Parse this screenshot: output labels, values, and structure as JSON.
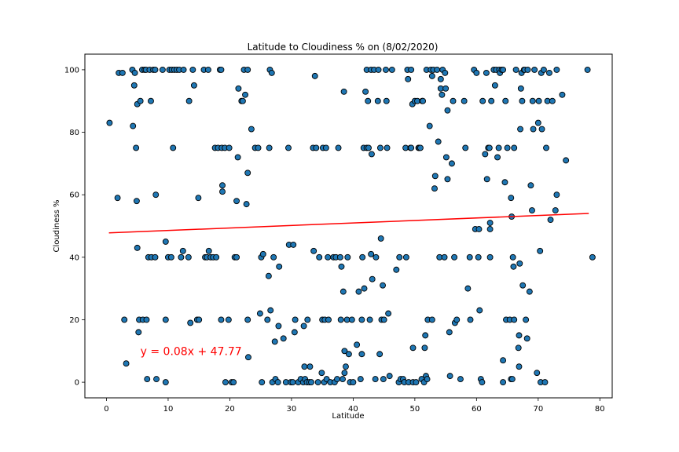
{
  "chart_data": {
    "type": "scatter",
    "title": "Latitude to Cloudiness % on (8/02/2020)",
    "xlabel": "Latitude",
    "ylabel": "Cloudiness %",
    "xlim": [
      -3.5,
      82
    ],
    "ylim": [
      -5,
      105
    ],
    "xticks": [
      "0",
      "10",
      "20",
      "30",
      "40",
      "50",
      "60",
      "70",
      "80"
    ],
    "yticks": [
      "0",
      "20",
      "40",
      "60",
      "80",
      "100"
    ],
    "grid": false,
    "point_color": "#1f77b4",
    "point_edge_color": "#000000",
    "regression": {
      "slope": 0.08,
      "intercept": 47.77,
      "x_range": [
        0.4,
        78.2
      ],
      "color": "#ff0000"
    },
    "annotation": {
      "text": "y = 0.08x + 47.77",
      "x": 5.5,
      "y": 10
    },
    "points": [
      [
        0.5,
        83
      ],
      [
        1.8,
        59
      ],
      [
        2.0,
        99
      ],
      [
        2.6,
        99
      ],
      [
        2.9,
        20
      ],
      [
        3.2,
        6
      ],
      [
        4.2,
        100
      ],
      [
        4.3,
        82
      ],
      [
        4.5,
        95
      ],
      [
        4.6,
        99
      ],
      [
        4.8,
        75
      ],
      [
        4.9,
        58
      ],
      [
        5.0,
        43
      ],
      [
        5.0,
        89
      ],
      [
        5.2,
        16
      ],
      [
        5.3,
        20
      ],
      [
        5.5,
        90
      ],
      [
        5.8,
        100
      ],
      [
        5.9,
        20
      ],
      [
        6.2,
        100
      ],
      [
        6.4,
        100
      ],
      [
        6.5,
        20
      ],
      [
        6.6,
        1
      ],
      [
        6.8,
        40
      ],
      [
        7.0,
        100
      ],
      [
        7.2,
        90
      ],
      [
        7.3,
        40
      ],
      [
        7.6,
        100
      ],
      [
        7.9,
        40
      ],
      [
        7.9,
        100
      ],
      [
        8.1,
        1
      ],
      [
        8.0,
        60
      ],
      [
        9.1,
        100
      ],
      [
        9.6,
        45
      ],
      [
        9.6,
        20
      ],
      [
        9.6,
        0
      ],
      [
        10.0,
        40
      ],
      [
        10.2,
        100
      ],
      [
        10.5,
        40
      ],
      [
        10.6,
        100
      ],
      [
        10.8,
        75
      ],
      [
        11.0,
        100
      ],
      [
        11.4,
        100
      ],
      [
        11.8,
        100
      ],
      [
        12.1,
        40
      ],
      [
        12.4,
        42
      ],
      [
        12.5,
        100
      ],
      [
        13.3,
        40
      ],
      [
        13.4,
        90
      ],
      [
        13.6,
        19
      ],
      [
        14.0,
        100
      ],
      [
        14.2,
        95
      ],
      [
        14.7,
        20
      ],
      [
        14.9,
        59
      ],
      [
        15.0,
        20
      ],
      [
        15.8,
        100
      ],
      [
        16.0,
        40
      ],
      [
        16.3,
        40
      ],
      [
        16.5,
        100
      ],
      [
        16.6,
        42
      ],
      [
        16.9,
        40
      ],
      [
        17.3,
        40
      ],
      [
        17.6,
        75
      ],
      [
        17.8,
        40
      ],
      [
        18.1,
        75
      ],
      [
        18.4,
        100
      ],
      [
        18.6,
        20
      ],
      [
        18.6,
        100
      ],
      [
        18.7,
        75
      ],
      [
        18.8,
        63
      ],
      [
        18.8,
        61
      ],
      [
        19.2,
        75
      ],
      [
        19.3,
        0
      ],
      [
        19.8,
        20
      ],
      [
        19.9,
        75
      ],
      [
        20.3,
        0
      ],
      [
        20.6,
        0
      ],
      [
        20.8,
        40
      ],
      [
        21.1,
        58
      ],
      [
        21.1,
        40
      ],
      [
        21.3,
        72
      ],
      [
        21.4,
        94
      ],
      [
        21.9,
        90
      ],
      [
        22.1,
        90
      ],
      [
        22.3,
        100
      ],
      [
        22.5,
        92
      ],
      [
        22.7,
        57
      ],
      [
        22.9,
        20
      ],
      [
        22.9,
        67
      ],
      [
        22.9,
        100
      ],
      [
        23.0,
        8
      ],
      [
        23.5,
        81
      ],
      [
        24.1,
        75
      ],
      [
        24.6,
        75
      ],
      [
        24.9,
        22
      ],
      [
        25.1,
        40
      ],
      [
        25.2,
        0
      ],
      [
        25.4,
        41
      ],
      [
        26.1,
        20
      ],
      [
        26.3,
        34
      ],
      [
        26.4,
        75
      ],
      [
        26.5,
        100
      ],
      [
        26.6,
        23
      ],
      [
        26.8,
        99
      ],
      [
        26.9,
        0
      ],
      [
        27.1,
        40
      ],
      [
        27.3,
        13
      ],
      [
        27.4,
        1
      ],
      [
        27.8,
        0
      ],
      [
        27.9,
        18
      ],
      [
        28.0,
        37
      ],
      [
        28.7,
        14
      ],
      [
        29.1,
        0
      ],
      [
        29.5,
        75
      ],
      [
        29.6,
        44
      ],
      [
        29.9,
        0
      ],
      [
        30.2,
        0
      ],
      [
        30.3,
        44
      ],
      [
        30.5,
        16
      ],
      [
        30.6,
        20
      ],
      [
        31.1,
        0
      ],
      [
        31.5,
        1
      ],
      [
        31.9,
        0
      ],
      [
        32.0,
        18
      ],
      [
        32.1,
        5
      ],
      [
        32.2,
        1
      ],
      [
        32.5,
        0
      ],
      [
        32.6,
        20
      ],
      [
        32.9,
        0
      ],
      [
        33.0,
        5
      ],
      [
        33.2,
        0
      ],
      [
        33.5,
        75
      ],
      [
        33.6,
        42
      ],
      [
        33.8,
        98
      ],
      [
        34.0,
        75
      ],
      [
        34.3,
        0
      ],
      [
        34.5,
        40
      ],
      [
        34.9,
        3
      ],
      [
        35.0,
        20
      ],
      [
        35.1,
        75
      ],
      [
        35.3,
        0
      ],
      [
        35.4,
        20
      ],
      [
        35.6,
        75
      ],
      [
        35.7,
        1
      ],
      [
        35.9,
        40
      ],
      [
        36.0,
        20
      ],
      [
        36.3,
        0
      ],
      [
        36.8,
        40
      ],
      [
        37.0,
        0
      ],
      [
        37.2,
        40
      ],
      [
        37.4,
        1
      ],
      [
        37.6,
        75
      ],
      [
        37.9,
        40
      ],
      [
        38.0,
        20
      ],
      [
        38.1,
        37
      ],
      [
        38.3,
        1
      ],
      [
        38.4,
        29
      ],
      [
        38.5,
        93
      ],
      [
        38.6,
        3
      ],
      [
        38.6,
        10
      ],
      [
        38.8,
        5
      ],
      [
        39.0,
        20
      ],
      [
        39.1,
        40
      ],
      [
        39.3,
        9
      ],
      [
        39.5,
        0
      ],
      [
        39.8,
        20
      ],
      [
        40.0,
        0
      ],
      [
        40.6,
        12
      ],
      [
        40.9,
        29
      ],
      [
        41.2,
        1
      ],
      [
        41.4,
        20
      ],
      [
        41.4,
        9
      ],
      [
        41.5,
        40
      ],
      [
        41.7,
        75
      ],
      [
        41.8,
        30
      ],
      [
        42.0,
        93
      ],
      [
        42.2,
        100
      ],
      [
        42.2,
        75
      ],
      [
        42.4,
        90
      ],
      [
        42.5,
        75
      ],
      [
        42.7,
        20
      ],
      [
        42.9,
        100
      ],
      [
        42.9,
        41
      ],
      [
        43.0,
        73
      ],
      [
        43.1,
        33
      ],
      [
        43.4,
        100
      ],
      [
        43.6,
        1
      ],
      [
        43.7,
        40
      ],
      [
        44.0,
        90
      ],
      [
        44.1,
        100
      ],
      [
        44.3,
        9
      ],
      [
        44.4,
        75
      ],
      [
        44.5,
        46
      ],
      [
        44.6,
        20
      ],
      [
        44.8,
        31
      ],
      [
        44.9,
        1
      ],
      [
        45.0,
        20
      ],
      [
        45.3,
        100
      ],
      [
        45.4,
        90
      ],
      [
        45.5,
        75
      ],
      [
        45.7,
        22
      ],
      [
        45.9,
        2
      ],
      [
        46.3,
        100
      ],
      [
        47.0,
        36
      ],
      [
        47.4,
        0
      ],
      [
        47.5,
        40
      ],
      [
        47.7,
        1
      ],
      [
        48.1,
        1
      ],
      [
        48.3,
        0
      ],
      [
        48.5,
        75
      ],
      [
        48.6,
        40
      ],
      [
        48.8,
        100
      ],
      [
        48.9,
        97
      ],
      [
        49.0,
        0
      ],
      [
        49.3,
        75
      ],
      [
        49.4,
        100
      ],
      [
        49.4,
        75
      ],
      [
        49.6,
        89
      ],
      [
        49.7,
        0
      ],
      [
        49.7,
        11
      ],
      [
        50.0,
        90
      ],
      [
        50.2,
        0
      ],
      [
        50.4,
        90
      ],
      [
        50.6,
        75
      ],
      [
        50.7,
        75
      ],
      [
        50.9,
        75
      ],
      [
        51.1,
        1
      ],
      [
        51.2,
        90
      ],
      [
        51.3,
        90
      ],
      [
        51.5,
        0
      ],
      [
        51.6,
        11
      ],
      [
        51.7,
        15
      ],
      [
        51.8,
        2
      ],
      [
        51.9,
        100
      ],
      [
        52.0,
        1
      ],
      [
        52.1,
        20
      ],
      [
        52.4,
        82
      ],
      [
        52.6,
        100
      ],
      [
        52.8,
        98
      ],
      [
        52.8,
        20
      ],
      [
        53.0,
        100
      ],
      [
        53.2,
        62
      ],
      [
        53.3,
        66
      ],
      [
        53.6,
        100
      ],
      [
        53.8,
        77
      ],
      [
        54.0,
        40
      ],
      [
        54.2,
        94
      ],
      [
        54.2,
        97
      ],
      [
        54.4,
        92
      ],
      [
        54.5,
        100
      ],
      [
        54.8,
        40
      ],
      [
        54.9,
        99
      ],
      [
        55.0,
        94
      ],
      [
        55.1,
        72
      ],
      [
        55.3,
        65
      ],
      [
        55.3,
        87
      ],
      [
        55.6,
        16
      ],
      [
        55.7,
        2
      ],
      [
        56.0,
        70
      ],
      [
        56.2,
        90
      ],
      [
        56.4,
        40
      ],
      [
        56.5,
        19
      ],
      [
        56.8,
        20
      ],
      [
        57.4,
        1
      ],
      [
        58.0,
        90
      ],
      [
        58.2,
        75
      ],
      [
        58.6,
        30
      ],
      [
        58.9,
        40
      ],
      [
        59.0,
        20
      ],
      [
        59.6,
        100
      ],
      [
        59.8,
        49
      ],
      [
        60.0,
        99
      ],
      [
        60.3,
        40
      ],
      [
        60.4,
        49
      ],
      [
        60.5,
        23
      ],
      [
        60.7,
        1
      ],
      [
        60.9,
        0
      ],
      [
        61.0,
        90
      ],
      [
        61.4,
        73
      ],
      [
        61.6,
        99
      ],
      [
        61.7,
        65
      ],
      [
        61.9,
        75
      ],
      [
        62.1,
        75
      ],
      [
        62.2,
        51
      ],
      [
        62.2,
        49
      ],
      [
        62.2,
        40
      ],
      [
        62.4,
        90
      ],
      [
        62.8,
        100
      ],
      [
        63.0,
        95
      ],
      [
        63.2,
        100
      ],
      [
        63.4,
        72
      ],
      [
        63.6,
        75
      ],
      [
        63.7,
        100
      ],
      [
        63.8,
        99
      ],
      [
        64.1,
        100
      ],
      [
        64.3,
        0
      ],
      [
        64.3,
        7
      ],
      [
        64.3,
        100
      ],
      [
        64.6,
        64
      ],
      [
        64.7,
        90
      ],
      [
        64.8,
        20
      ],
      [
        65.0,
        75
      ],
      [
        65.4,
        20
      ],
      [
        65.6,
        59
      ],
      [
        65.6,
        1
      ],
      [
        65.7,
        53
      ],
      [
        65.8,
        1
      ],
      [
        65.9,
        40
      ],
      [
        66.0,
        37
      ],
      [
        66.1,
        75
      ],
      [
        66.1,
        20
      ],
      [
        66.4,
        100
      ],
      [
        66.8,
        11
      ],
      [
        66.9,
        15
      ],
      [
        66.9,
        5
      ],
      [
        67.0,
        38
      ],
      [
        67.1,
        81
      ],
      [
        67.2,
        94
      ],
      [
        67.3,
        99
      ],
      [
        67.4,
        90
      ],
      [
        67.5,
        31
      ],
      [
        67.7,
        100
      ],
      [
        67.8,
        100
      ],
      [
        68.0,
        20
      ],
      [
        68.2,
        14
      ],
      [
        68.3,
        100
      ],
      [
        68.6,
        29
      ],
      [
        68.8,
        63
      ],
      [
        69.0,
        55
      ],
      [
        69.1,
        90
      ],
      [
        69.2,
        81
      ],
      [
        69.4,
        100
      ],
      [
        69.8,
        3
      ],
      [
        70.0,
        83
      ],
      [
        70.1,
        90
      ],
      [
        70.3,
        42
      ],
      [
        70.4,
        0
      ],
      [
        70.5,
        99
      ],
      [
        70.6,
        81
      ],
      [
        70.9,
        100
      ],
      [
        71.1,
        0
      ],
      [
        71.3,
        75
      ],
      [
        71.5,
        90
      ],
      [
        71.8,
        99
      ],
      [
        72.0,
        52
      ],
      [
        72.3,
        90
      ],
      [
        72.8,
        55
      ],
      [
        73.0,
        100
      ],
      [
        73.0,
        60
      ],
      [
        73.9,
        92
      ],
      [
        74.5,
        71
      ],
      [
        78.0,
        100
      ],
      [
        78.8,
        40
      ]
    ]
  }
}
